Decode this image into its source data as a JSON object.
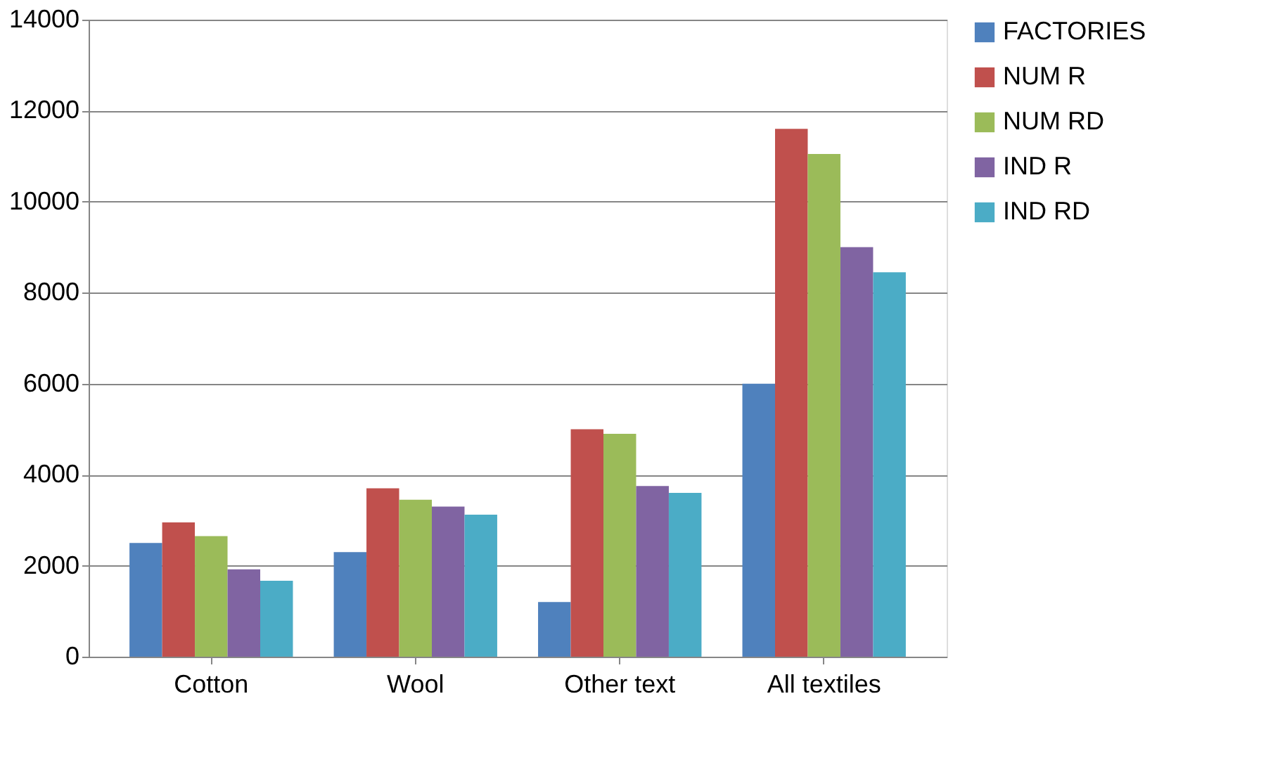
{
  "chart_data": {
    "type": "bar",
    "categories": [
      "Cotton",
      "Wool",
      "Other text",
      "All textiles"
    ],
    "series": [
      {
        "name": "FACTORIES",
        "color": "#4f81bd",
        "values": [
          2500,
          2300,
          1200,
          6000
        ]
      },
      {
        "name": "NUM R",
        "color": "#c0504d",
        "values": [
          2950,
          3700,
          5000,
          11600
        ]
      },
      {
        "name": "NUM RD",
        "color": "#9bbb59",
        "values": [
          2650,
          3450,
          4900,
          11050
        ]
      },
      {
        "name": "IND R",
        "color": "#8064a2",
        "values": [
          1920,
          3300,
          3750,
          9000
        ]
      },
      {
        "name": "IND RD",
        "color": "#4bacc6",
        "values": [
          1670,
          3120,
          3600,
          8450
        ]
      }
    ],
    "ylim": [
      0,
      14000
    ],
    "yticks": [
      0,
      2000,
      4000,
      6000,
      8000,
      10000,
      12000,
      14000
    ],
    "grid": "y",
    "legend": "right"
  }
}
